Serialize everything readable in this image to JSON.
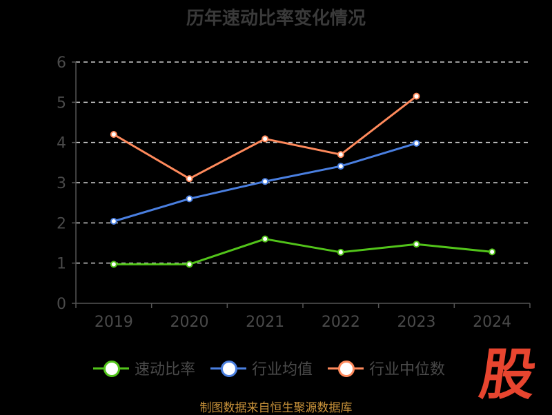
{
  "title": "历年速动比率变化情况",
  "source_note": "制图数据来自恒生聚源数据库",
  "brand_logo_text": "股",
  "legend": [
    {
      "label": "速动比率",
      "color": "#52c41a"
    },
    {
      "label": "行业均值",
      "color": "#4a7fe0"
    },
    {
      "label": "行业中位数",
      "color": "#ff8a5c"
    }
  ],
  "chart_data": {
    "type": "line",
    "title": "历年速动比率变化情况",
    "xlabel": "",
    "ylabel": "",
    "categories": [
      "2019",
      "2020",
      "2021",
      "2022",
      "2023",
      "2024"
    ],
    "ylim": [
      0,
      6
    ],
    "yticks": [
      0,
      1,
      2,
      3,
      4,
      5,
      6
    ],
    "grid": "horizontal dashed",
    "legend_position": "bottom",
    "series": [
      {
        "name": "速动比率",
        "color": "#52c41a",
        "values": [
          0.97,
          0.97,
          1.6,
          1.27,
          1.47,
          1.28
        ]
      },
      {
        "name": "行业均值",
        "color": "#4a7fe0",
        "values": [
          2.04,
          2.6,
          3.03,
          3.41,
          3.98,
          null
        ]
      },
      {
        "name": "行业中位数",
        "color": "#ff8a5c",
        "values": [
          4.2,
          3.1,
          4.09,
          3.7,
          5.15,
          null
        ]
      }
    ]
  }
}
